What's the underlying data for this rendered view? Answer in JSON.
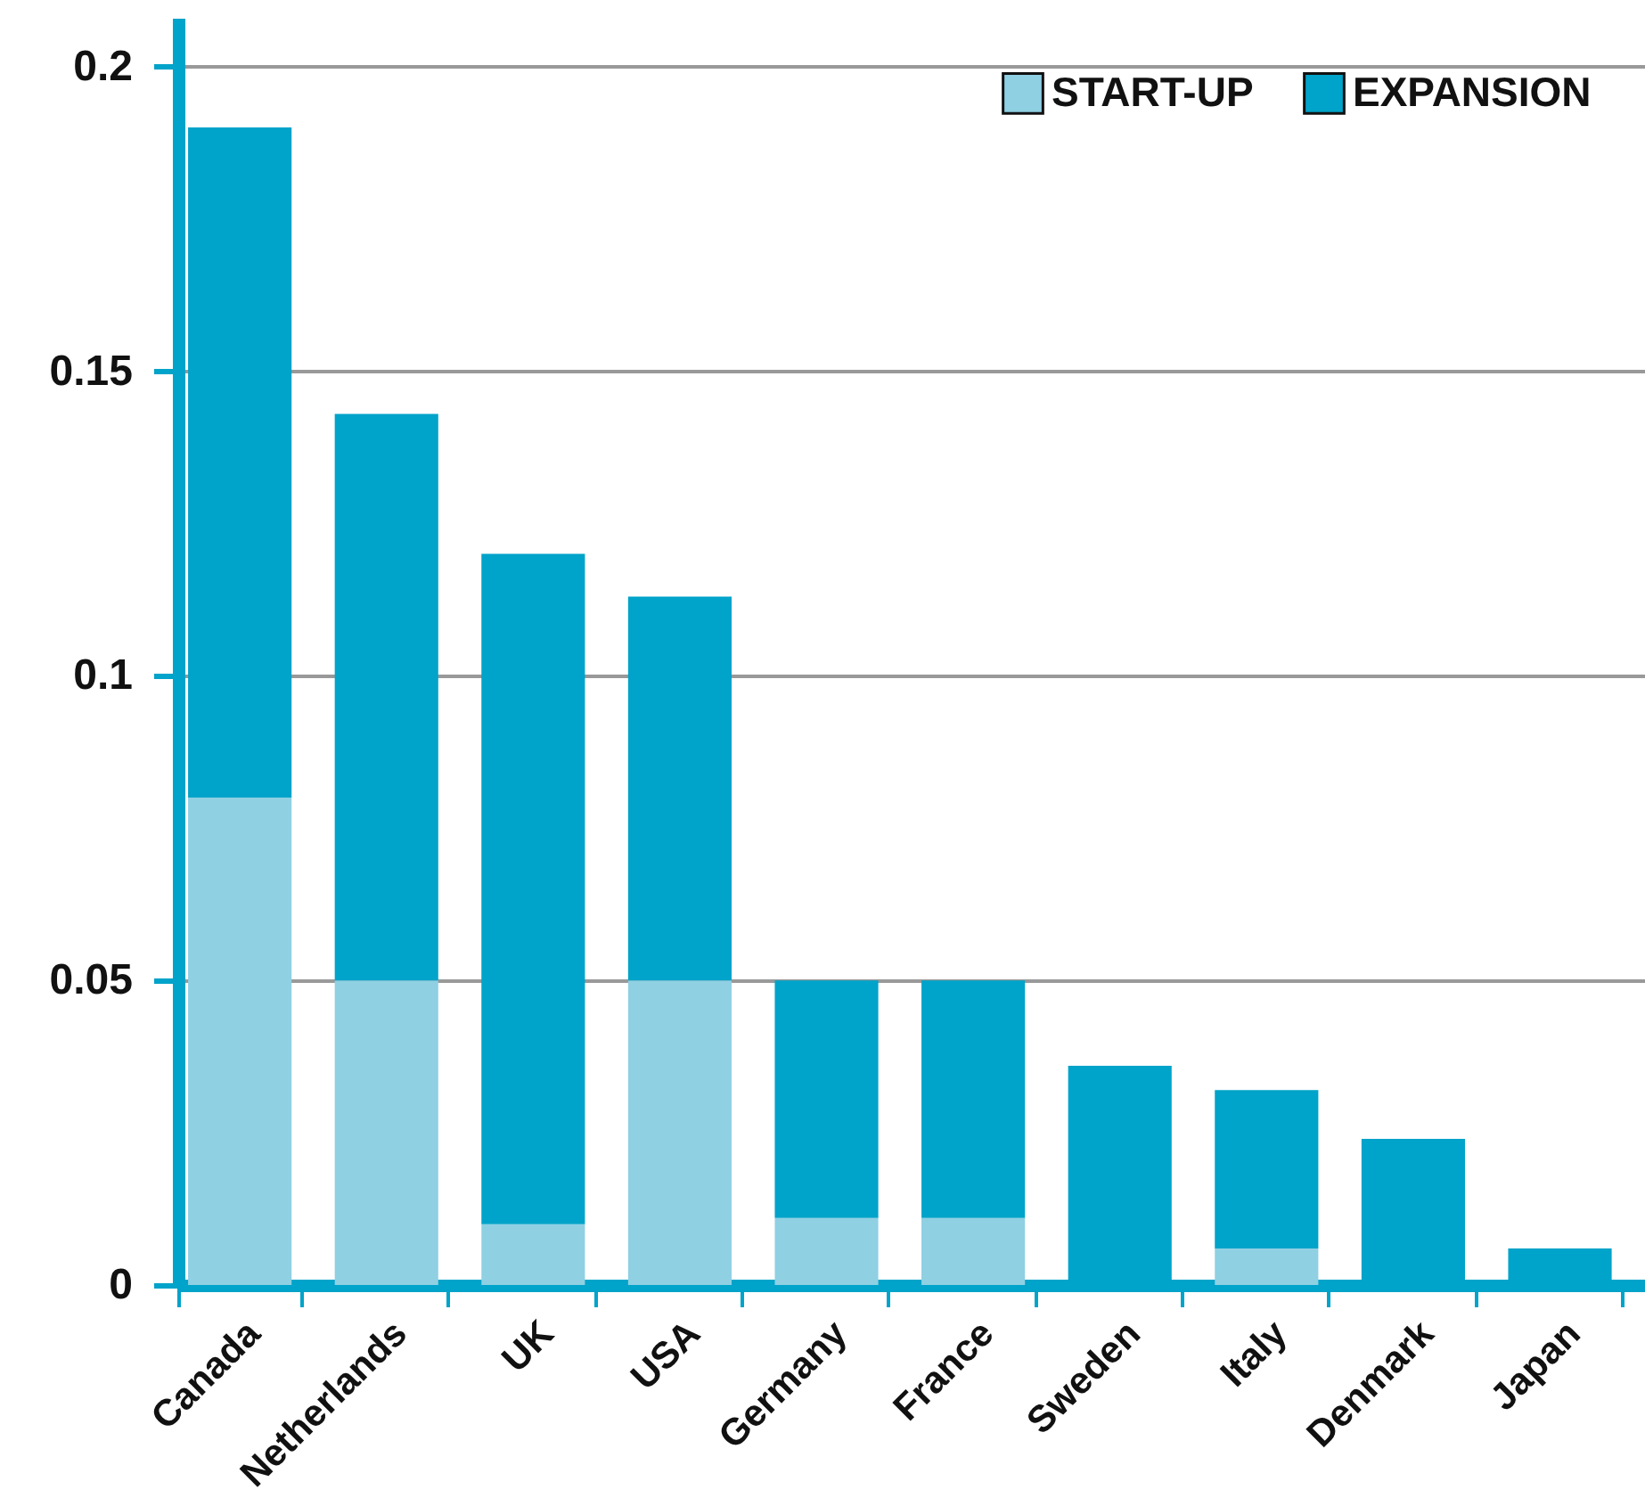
{
  "chart_data": {
    "type": "bar",
    "stacked": true,
    "categories": [
      "Canada",
      "Netherlands",
      "UK",
      "USA",
      "Germany",
      "France",
      "Sweden",
      "Italy",
      "Denmark",
      "Japan"
    ],
    "series": [
      {
        "name": "START-UP",
        "color": "#8fd0e3",
        "values": [
          0.08,
          0.05,
          0.01,
          0.05,
          0.011,
          0.011,
          0,
          0.006,
          0,
          0
        ]
      },
      {
        "name": "EXPANSION",
        "color": "#00a3c9",
        "values": [
          0.11,
          0.093,
          0.11,
          0.063,
          0.039,
          0.039,
          0.036,
          0.026,
          0.024,
          0.006
        ]
      }
    ],
    "ylim": [
      0,
      0.208
    ],
    "yticks": [
      0,
      0.05,
      0.1,
      0.15,
      0.2
    ],
    "grid": "y",
    "legend": "top right"
  }
}
